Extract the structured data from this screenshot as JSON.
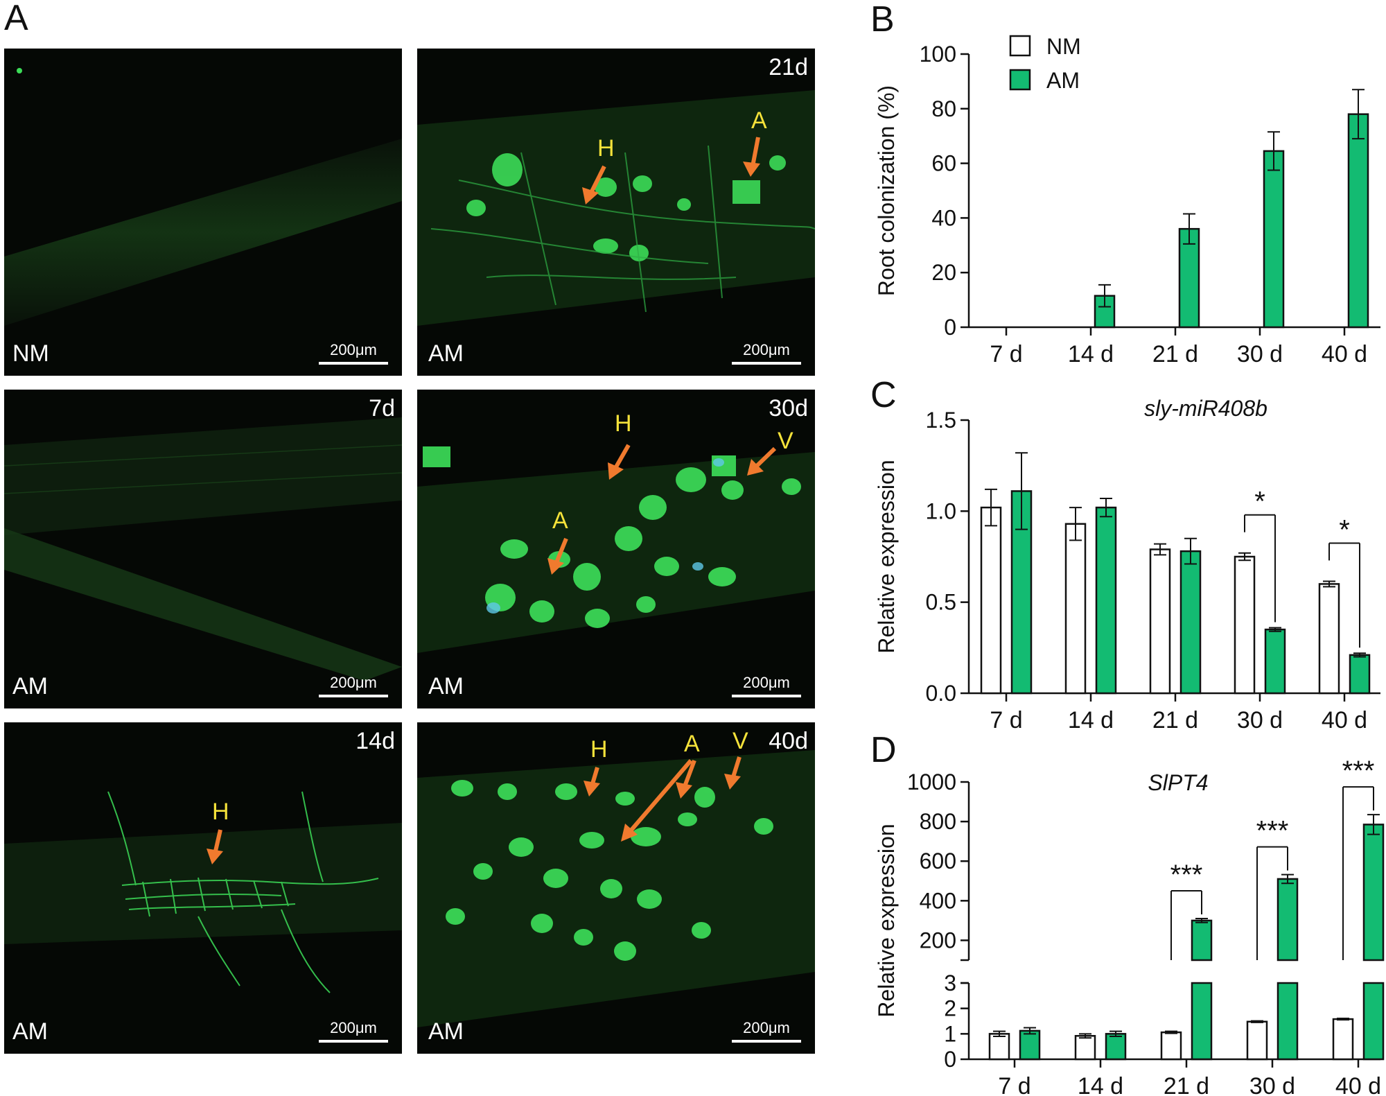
{
  "panel_letters": {
    "a": "A",
    "b": "B",
    "c": "C",
    "d": "D"
  },
  "micrographs": [
    {
      "label": "NM",
      "day": "",
      "scale": "200μm",
      "annotations": []
    },
    {
      "label": "AM",
      "day": "21d",
      "scale": "200μm",
      "annotations": [
        "H",
        "A"
      ]
    },
    {
      "label": "AM",
      "day": "7d",
      "scale": "200μm",
      "annotations": []
    },
    {
      "label": "AM",
      "day": "30d",
      "scale": "200μm",
      "annotations": [
        "H",
        "V",
        "A"
      ]
    },
    {
      "label": "AM",
      "day": "14d",
      "scale": "200μm",
      "annotations": [
        "H"
      ]
    },
    {
      "label": "AM",
      "day": "40d",
      "scale": "200μm",
      "annotations": [
        "H",
        "A",
        "V"
      ]
    }
  ],
  "colors": {
    "nm": "#ffffff",
    "am": "#13bb72",
    "arrow": "#f07a2e",
    "annotation": "#f5e23a",
    "fluor": "#3cdc58"
  },
  "chart_data": [
    {
      "panel": "B",
      "type": "bar",
      "ylabel": "Root colonization (%)",
      "ylim": [
        0,
        100
      ],
      "yticks": [
        "0",
        "20",
        "40",
        "60",
        "80",
        "100"
      ],
      "categories": [
        "7 d",
        "14 d",
        "21 d",
        "30 d",
        "40 d"
      ],
      "legend": [
        "NM",
        "AM"
      ],
      "legend_position": "top-left",
      "series": [
        {
          "name": "AM",
          "values": [
            0,
            11.5,
            36,
            64.5,
            78
          ],
          "errors": [
            0,
            4,
            5.5,
            7,
            9
          ]
        }
      ]
    },
    {
      "panel": "C",
      "type": "bar",
      "title": "sly-miR408b",
      "ylabel": "Relative expression",
      "ylim": [
        0,
        1.5
      ],
      "yticks": [
        "0.0",
        "0.5",
        "1.0",
        "1.5"
      ],
      "categories": [
        "7 d",
        "14 d",
        "21 d",
        "30 d",
        "40 d"
      ],
      "series": [
        {
          "name": "NM",
          "values": [
            1.02,
            0.93,
            0.79,
            0.75,
            0.6
          ],
          "errors": [
            0.1,
            0.09,
            0.03,
            0.02,
            0.015
          ]
        },
        {
          "name": "AM",
          "values": [
            1.11,
            1.02,
            0.78,
            0.35,
            0.21
          ],
          "errors": [
            0.21,
            0.05,
            0.07,
            0.01,
            0.01
          ]
        }
      ],
      "significance": [
        {
          "category": "30 d",
          "label": "*"
        },
        {
          "category": "40 d",
          "label": "*"
        }
      ]
    },
    {
      "panel": "D",
      "type": "bar",
      "title": "SlPT4",
      "ylabel": "Relative expression",
      "y_axis_break": true,
      "ylim_lower": [
        0,
        3
      ],
      "ylim_upper": [
        100,
        1000
      ],
      "yticks_lower": [
        "0",
        "1",
        "2",
        "3"
      ],
      "yticks_upper": [
        "200",
        "400",
        "600",
        "800",
        "1000"
      ],
      "categories": [
        "7 d",
        "14 d",
        "21 d",
        "30 d",
        "40 d"
      ],
      "series": [
        {
          "name": "NM",
          "values": [
            1.0,
            0.92,
            1.06,
            1.48,
            1.58
          ],
          "errors": [
            0.1,
            0.08,
            0.04,
            0.03,
            0.03
          ]
        },
        {
          "name": "AM",
          "values": [
            1.12,
            1.0,
            300,
            510,
            785
          ],
          "errors": [
            0.12,
            0.1,
            10,
            22,
            50
          ]
        }
      ],
      "significance": [
        {
          "category": "21 d",
          "label": "***"
        },
        {
          "category": "30 d",
          "label": "***"
        },
        {
          "category": "40 d",
          "label": "***"
        }
      ]
    }
  ]
}
